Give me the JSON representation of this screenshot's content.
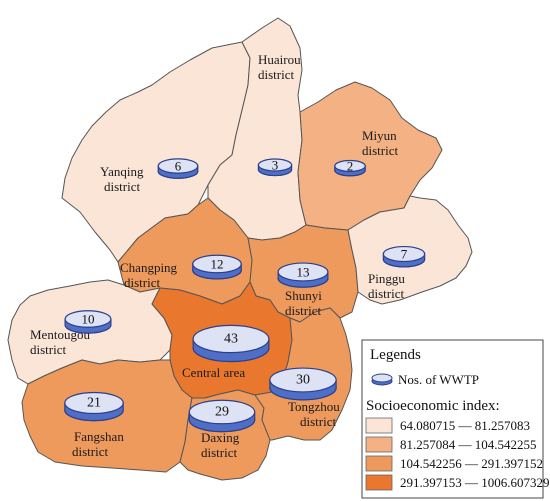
{
  "colors": {
    "class1": "#fbe5d6",
    "class2": "#f4b183",
    "class3": "#ee9a5c",
    "class4": "#e9782e",
    "disk_top": "#dde3f5",
    "disk_side": "#4f6fc7",
    "border": "#555555"
  },
  "districts": [
    {
      "name": "Yanqing",
      "label_line1": "Yanqing",
      "label_line2": "district",
      "wwtp": "6",
      "class": "class1"
    },
    {
      "name": "Huairou",
      "label_line1": "Huairou",
      "label_line2": "district",
      "wwtp": "3",
      "class": "class1"
    },
    {
      "name": "Miyun",
      "label_line1": "Miyun",
      "label_line2": "district",
      "wwtp": "2",
      "class": "class2"
    },
    {
      "name": "Changping",
      "label_line1": "Changping",
      "label_line2": "district",
      "wwtp": "12",
      "class": "class3"
    },
    {
      "name": "Shunyi",
      "label_line1": "Shunyi",
      "label_line2": "district",
      "wwtp": "13",
      "class": "class3"
    },
    {
      "name": "Pinggu",
      "label_line1": "Pinggu",
      "label_line2": "district",
      "wwtp": "7",
      "class": "class1"
    },
    {
      "name": "Mentougou",
      "label_line1": "Mentougou",
      "label_line2": "district",
      "wwtp": "10",
      "class": "class1"
    },
    {
      "name": "Central area",
      "label_line1": "Central area",
      "label_line2": "",
      "wwtp": "43",
      "class": "class4"
    },
    {
      "name": "Fangshan",
      "label_line1": "Fangshan",
      "label_line2": "district",
      "wwtp": "21",
      "class": "class3"
    },
    {
      "name": "Daxing",
      "label_line1": "Daxing",
      "label_line2": "district",
      "wwtp": "29",
      "class": "class3"
    },
    {
      "name": "Tongzhou",
      "label_line1": "Tongzhou",
      "label_line2": "district",
      "wwtp": "30",
      "class": "class3"
    }
  ],
  "legend": {
    "title": "Legends",
    "wwtp_label": "Nos. of WWTP",
    "index_title": "Socioeconomic index:",
    "ranges": [
      {
        "label": "64.080715  — 81.257083",
        "class": "class1"
      },
      {
        "label": "81.257084  — 104.542255",
        "class": "class2"
      },
      {
        "label": "104.542256 — 291.397152",
        "class": "class3"
      },
      {
        "label": "291.397153 — 1006.607329",
        "class": "class4"
      }
    ]
  }
}
